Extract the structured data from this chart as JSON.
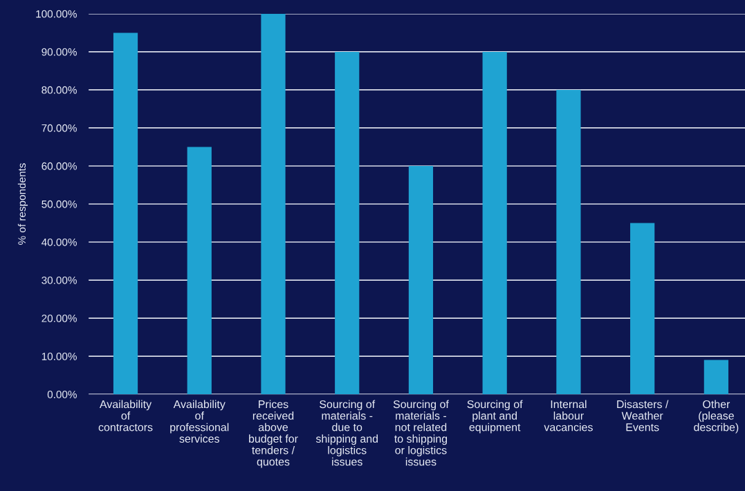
{
  "chart_data": {
    "type": "bar",
    "categories": [
      "Availability\nof\ncontractors",
      "Availability\nof\nprofessional\nservices",
      "Prices\nreceived\nabove\nbudget for\ntenders /\nquotes",
      "Sourcing of\nmaterials -\ndue to\nshipping and\nlogistics\nissues",
      "Sourcing of\nmaterials -\nnot related\nto shipping\nor logistics\nissues",
      "Sourcing of\nplant and\nequipment",
      "Internal\nlabour\nvacancies",
      "Disasters /\nWeather\nEvents",
      "Other\n(please\ndescribe)"
    ],
    "values": [
      95,
      65,
      100,
      90,
      60,
      90,
      80,
      45,
      9
    ],
    "color": "#1fa3d2",
    "ylabel": "% of respondents",
    "ylim": [
      0,
      100
    ],
    "yticks": [
      {
        "value": 0,
        "label": "0.00%"
      },
      {
        "value": 10,
        "label": "10.00%"
      },
      {
        "value": 20,
        "label": "20.00%"
      },
      {
        "value": 30,
        "label": "30.00%"
      },
      {
        "value": 40,
        "label": "40.00%"
      },
      {
        "value": 50,
        "label": "50.00%"
      },
      {
        "value": 60,
        "label": "60.00%"
      },
      {
        "value": 70,
        "label": "70.00%"
      },
      {
        "value": 80,
        "label": "80.00%"
      },
      {
        "value": 90,
        "label": "90.00%"
      },
      {
        "value": 100,
        "label": "100.00%"
      }
    ],
    "grid": "y"
  }
}
